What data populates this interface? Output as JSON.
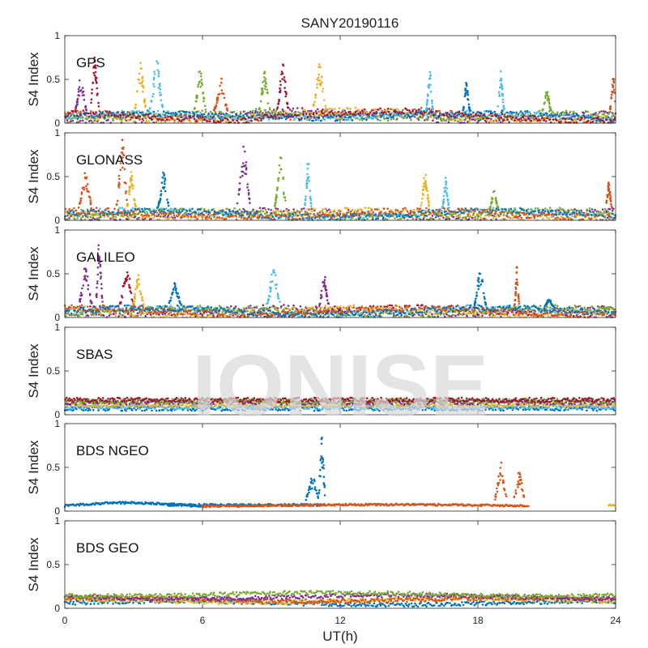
{
  "chart_data": {
    "type": "scatter",
    "title": "SANY20190116",
    "xlabel": "UT(h)",
    "ylabel": "S4 Index",
    "xlim": [
      0,
      24
    ],
    "ylim": [
      0,
      1
    ],
    "xticks": [
      0,
      6,
      12,
      18,
      24
    ],
    "yticks": [
      0,
      0.5,
      1
    ],
    "xtick_labels": [
      "0",
      "6",
      "12",
      "18",
      "24"
    ],
    "ytick_labels": [
      "0",
      "0.5",
      "1"
    ],
    "watermark": "IONISE",
    "grid": false,
    "colors": [
      "#0072BD",
      "#D95319",
      "#EDB120",
      "#7E2F8E",
      "#77AC30",
      "#4DBEEE",
      "#A2142F"
    ],
    "panels": [
      {
        "name": "GPS",
        "bursts": [
          {
            "t": 0.7,
            "w": 0.5,
            "peak": 0.55,
            "c": 3
          },
          {
            "t": 1.3,
            "w": 0.4,
            "peak": 0.78,
            "c": 6
          },
          {
            "t": 3.3,
            "w": 0.5,
            "peak": 0.72,
            "c": 2
          },
          {
            "t": 4.0,
            "w": 0.6,
            "peak": 0.75,
            "c": 5
          },
          {
            "t": 5.9,
            "w": 0.5,
            "peak": 0.65,
            "c": 4
          },
          {
            "t": 6.8,
            "w": 0.6,
            "peak": 0.52,
            "c": 1
          },
          {
            "t": 8.7,
            "w": 0.5,
            "peak": 0.6,
            "c": 4
          },
          {
            "t": 9.5,
            "w": 0.5,
            "peak": 0.72,
            "c": 6
          },
          {
            "t": 11.1,
            "w": 0.6,
            "peak": 0.72,
            "c": 2
          },
          {
            "t": 15.9,
            "w": 0.3,
            "peak": 0.65,
            "c": 5
          },
          {
            "t": 17.5,
            "w": 0.3,
            "peak": 0.5,
            "c": 0
          },
          {
            "t": 19.0,
            "w": 0.3,
            "peak": 0.62,
            "c": 5
          },
          {
            "t": 21.0,
            "w": 0.4,
            "peak": 0.4,
            "c": 4
          },
          {
            "t": 23.9,
            "w": 0.3,
            "peak": 0.55,
            "c": 1
          }
        ]
      },
      {
        "name": "GLONASS",
        "bursts": [
          {
            "t": 0.9,
            "w": 0.6,
            "peak": 0.55,
            "c": 1
          },
          {
            "t": 2.5,
            "w": 0.5,
            "peak": 0.95,
            "c": 1
          },
          {
            "t": 2.9,
            "w": 0.4,
            "peak": 0.6,
            "c": 2
          },
          {
            "t": 4.3,
            "w": 0.5,
            "peak": 0.55,
            "c": 0
          },
          {
            "t": 7.8,
            "w": 0.6,
            "peak": 0.88,
            "c": 3
          },
          {
            "t": 9.4,
            "w": 0.5,
            "peak": 0.8,
            "c": 4
          },
          {
            "t": 10.6,
            "w": 0.3,
            "peak": 0.7,
            "c": 5
          },
          {
            "t": 15.7,
            "w": 0.4,
            "peak": 0.55,
            "c": 2
          },
          {
            "t": 16.6,
            "w": 0.3,
            "peak": 0.5,
            "c": 5
          },
          {
            "t": 18.7,
            "w": 0.4,
            "peak": 0.35,
            "c": 4
          },
          {
            "t": 23.7,
            "w": 0.3,
            "peak": 0.45,
            "c": 1
          }
        ]
      },
      {
        "name": "GALILEO",
        "bursts": [
          {
            "t": 0.9,
            "w": 0.6,
            "peak": 0.6,
            "c": 3
          },
          {
            "t": 1.5,
            "w": 0.3,
            "peak": 0.9,
            "c": 3
          },
          {
            "t": 2.7,
            "w": 0.6,
            "peak": 0.62,
            "c": 6
          },
          {
            "t": 3.2,
            "w": 0.5,
            "peak": 0.5,
            "c": 2
          },
          {
            "t": 4.8,
            "w": 0.6,
            "peak": 0.4,
            "c": 0
          },
          {
            "t": 9.1,
            "w": 0.6,
            "peak": 0.58,
            "c": 5
          },
          {
            "t": 11.3,
            "w": 0.4,
            "peak": 0.52,
            "c": 3
          },
          {
            "t": 18.1,
            "w": 0.5,
            "peak": 0.58,
            "c": 0
          },
          {
            "t": 19.7,
            "w": 0.2,
            "peak": 0.6,
            "c": 1
          },
          {
            "t": 21.1,
            "w": 0.4,
            "peak": 0.22,
            "c": 0
          },
          {
            "t": 23.5,
            "w": 0.5,
            "peak": 0.1,
            "c": 4
          }
        ]
      },
      {
        "name": "SBAS",
        "bursts": []
      },
      {
        "name": "BDS NGEO",
        "bursts": [
          {
            "t": 10.8,
            "w": 0.6,
            "peak": 0.42,
            "c": 0
          },
          {
            "t": 11.2,
            "w": 0.3,
            "peak": 0.85,
            "c": 0
          },
          {
            "t": 19.0,
            "w": 0.5,
            "peak": 0.58,
            "c": 1
          },
          {
            "t": 19.8,
            "w": 0.5,
            "peak": 0.45,
            "c": 1
          }
        ]
      },
      {
        "name": "BDS GEO",
        "bursts": []
      }
    ]
  }
}
